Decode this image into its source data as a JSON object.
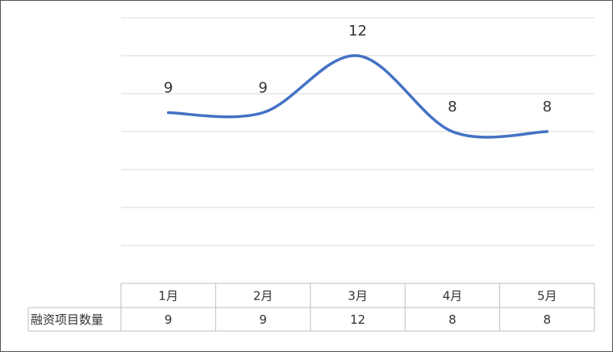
{
  "chart_data": {
    "type": "line",
    "categories": [
      "1月",
      "2月",
      "3月",
      "4月",
      "5月"
    ],
    "series": [
      {
        "name": "融资项目数量",
        "color": "#4472c4",
        "values": [
          9,
          9,
          12,
          8,
          8
        ]
      }
    ],
    "ylim": [
      0,
      14
    ],
    "yticks": [
      0,
      2,
      4,
      6,
      8,
      10,
      12,
      14
    ],
    "grid": true,
    "smooth": true,
    "data_table": true
  }
}
